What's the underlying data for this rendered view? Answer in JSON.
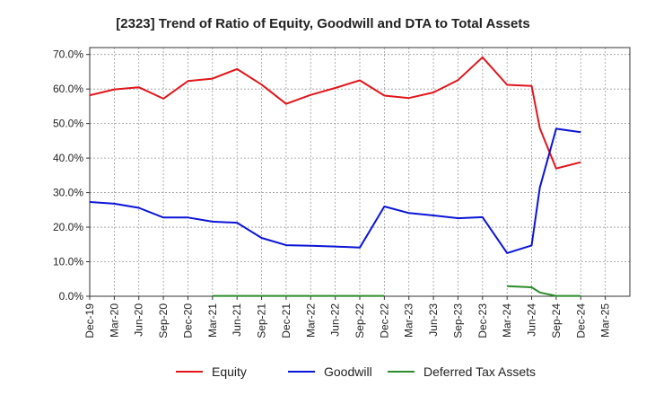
{
  "chart_data": {
    "type": "line",
    "title": "[2323]  Trend of Ratio of Equity, Goodwill and DTA to Total Assets",
    "xlabel": "",
    "ylabel": "",
    "ylim": [
      0,
      72
    ],
    "y_ticks": [
      0,
      10,
      20,
      30,
      40,
      50,
      60,
      70
    ],
    "y_tick_labels": [
      "0.0%",
      "10.0%",
      "20.0%",
      "30.0%",
      "40.0%",
      "50.0%",
      "60.0%",
      "70.0%"
    ],
    "x_ticks": [
      "Dec-19",
      "Mar-20",
      "Jun-20",
      "Sep-20",
      "Dec-20",
      "Mar-21",
      "Jun-21",
      "Sep-21",
      "Dec-21",
      "Mar-22",
      "Jun-22",
      "Sep-22",
      "Dec-22",
      "Mar-23",
      "Jun-23",
      "Sep-23",
      "Dec-23",
      "Mar-24",
      "Jun-24",
      "Sep-24",
      "Dec-24",
      "Mar-25"
    ],
    "grid": true,
    "legend_position": "bottom",
    "series": [
      {
        "name": "Equity",
        "color": "#e0161b",
        "points": [
          {
            "x": "Dec-19",
            "y": 58.2
          },
          {
            "x": "Mar-20",
            "y": 59.9
          },
          {
            "x": "Jun-20",
            "y": 60.5
          },
          {
            "x": "Sep-20",
            "y": 57.2
          },
          {
            "x": "Dec-20",
            "y": 62.3
          },
          {
            "x": "Mar-21",
            "y": 63.0
          },
          {
            "x": "Jun-21",
            "y": 65.8
          },
          {
            "x": "Sep-21",
            "y": 61.3
          },
          {
            "x": "Dec-21",
            "y": 55.7
          },
          {
            "x": "Mar-22",
            "y": 58.3
          },
          {
            "x": "Jun-22",
            "y": 60.3
          },
          {
            "x": "Sep-22",
            "y": 62.5
          },
          {
            "x": "Dec-22",
            "y": 58.1
          },
          {
            "x": "Mar-23",
            "y": 57.4
          },
          {
            "x": "Jun-23",
            "y": 59.0
          },
          {
            "x": "Sep-23",
            "y": 62.6
          },
          {
            "x": "Dec-23",
            "y": 69.2
          },
          {
            "x": "Mar-24",
            "y": 61.2
          },
          {
            "x": "Jun-24",
            "y": 60.9
          },
          {
            "x": "Jul-24",
            "y": 48.6
          },
          {
            "x": "Sep-24",
            "y": 37.0
          },
          {
            "x": "Dec-24",
            "y": 38.8
          }
        ]
      },
      {
        "name": "Goodwill",
        "color": "#0a14d6",
        "points": [
          {
            "x": "Dec-19",
            "y": 27.3
          },
          {
            "x": "Mar-20",
            "y": 26.8
          },
          {
            "x": "Jun-20",
            "y": 25.6
          },
          {
            "x": "Sep-20",
            "y": 22.8
          },
          {
            "x": "Dec-20",
            "y": 22.8
          },
          {
            "x": "Mar-21",
            "y": 21.6
          },
          {
            "x": "Jun-21",
            "y": 21.3
          },
          {
            "x": "Sep-21",
            "y": 16.9
          },
          {
            "x": "Dec-21",
            "y": 14.8
          },
          {
            "x": "Mar-22",
            "y": 14.6
          },
          {
            "x": "Jun-22",
            "y": 14.4
          },
          {
            "x": "Sep-22",
            "y": 14.1
          },
          {
            "x": "Dec-22",
            "y": 26.0
          },
          {
            "x": "Mar-23",
            "y": 24.1
          },
          {
            "x": "Jun-23",
            "y": 23.4
          },
          {
            "x": "Sep-23",
            "y": 22.6
          },
          {
            "x": "Dec-23",
            "y": 22.9
          },
          {
            "x": "Mar-24",
            "y": 12.5
          },
          {
            "x": "Jun-24",
            "y": 14.7
          },
          {
            "x": "Jul-24",
            "y": 31.5
          },
          {
            "x": "Sep-24",
            "y": 48.5
          },
          {
            "x": "Dec-24",
            "y": 47.5
          }
        ]
      },
      {
        "name": "Deferred Tax Assets",
        "color": "#2a8c2a",
        "segments": [
          [
            {
              "x": "Mar-21",
              "y": 0.1
            },
            {
              "x": "Jun-21",
              "y": 0.1
            },
            {
              "x": "Sep-21",
              "y": 0.1
            },
            {
              "x": "Dec-21",
              "y": 0.1
            },
            {
              "x": "Mar-22",
              "y": 0.1
            },
            {
              "x": "Jun-22",
              "y": 0.1
            },
            {
              "x": "Sep-22",
              "y": 0.1
            },
            {
              "x": "Dec-22",
              "y": 0.1
            }
          ],
          [
            {
              "x": "Mar-24",
              "y": 2.9
            },
            {
              "x": "Jun-24",
              "y": 2.6
            },
            {
              "x": "Jul-24",
              "y": 1.1
            },
            {
              "x": "Sep-24",
              "y": 0.1
            },
            {
              "x": "Dec-24",
              "y": 0.1
            }
          ]
        ]
      }
    ]
  }
}
